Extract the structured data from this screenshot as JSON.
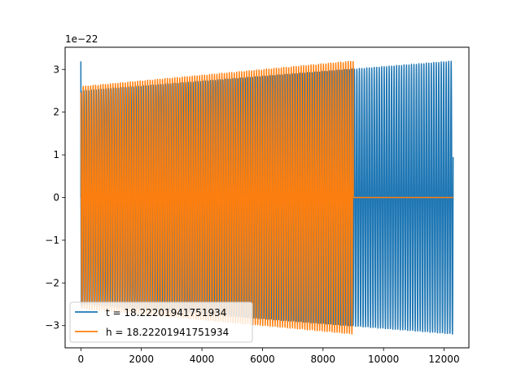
{
  "chart_data": {
    "type": "line",
    "title": "",
    "xlabel": "",
    "ylabel": "",
    "y_scale_label": "1e−22",
    "xlim": [
      -520,
      12820
    ],
    "ylim": [
      -3.52,
      3.52
    ],
    "x_ticks": [
      0,
      2000,
      4000,
      6000,
      8000,
      10000,
      12000
    ],
    "x_tick_labels": [
      "0",
      "2000",
      "4000",
      "6000",
      "8000",
      "10000",
      "12000"
    ],
    "y_ticks": [
      -3,
      -2,
      -1,
      0,
      1,
      2,
      3
    ],
    "y_tick_labels": [
      "−3",
      "−2",
      "−1",
      "0",
      "1",
      "2",
      "3"
    ],
    "grid": false,
    "legend_position": "lower-left",
    "series": [
      {
        "name": "t = 18.22201941751934",
        "color": "#1f77b4",
        "x_range": [
          0,
          12300
        ],
        "samples": 4000,
        "cycles": 150,
        "phase": 0.3,
        "amplitude_start": 2.5,
        "amplitude_end": 3.2,
        "initial_spike": 3.18
      },
      {
        "name": "h = 18.22201941751934",
        "color": "#ff7f0e",
        "x_range": [
          0,
          9000
        ],
        "flat_until": 12300,
        "samples": 3000,
        "cycles": 110,
        "phase": 1.9,
        "amplitude_start": 2.6,
        "amplitude_end": 3.2
      }
    ]
  },
  "legend": {
    "entries": [
      {
        "label": "t = 18.22201941751934",
        "color": "#1f77b4"
      },
      {
        "label": "h = 18.22201941751934",
        "color": "#ff7f0e"
      }
    ]
  }
}
